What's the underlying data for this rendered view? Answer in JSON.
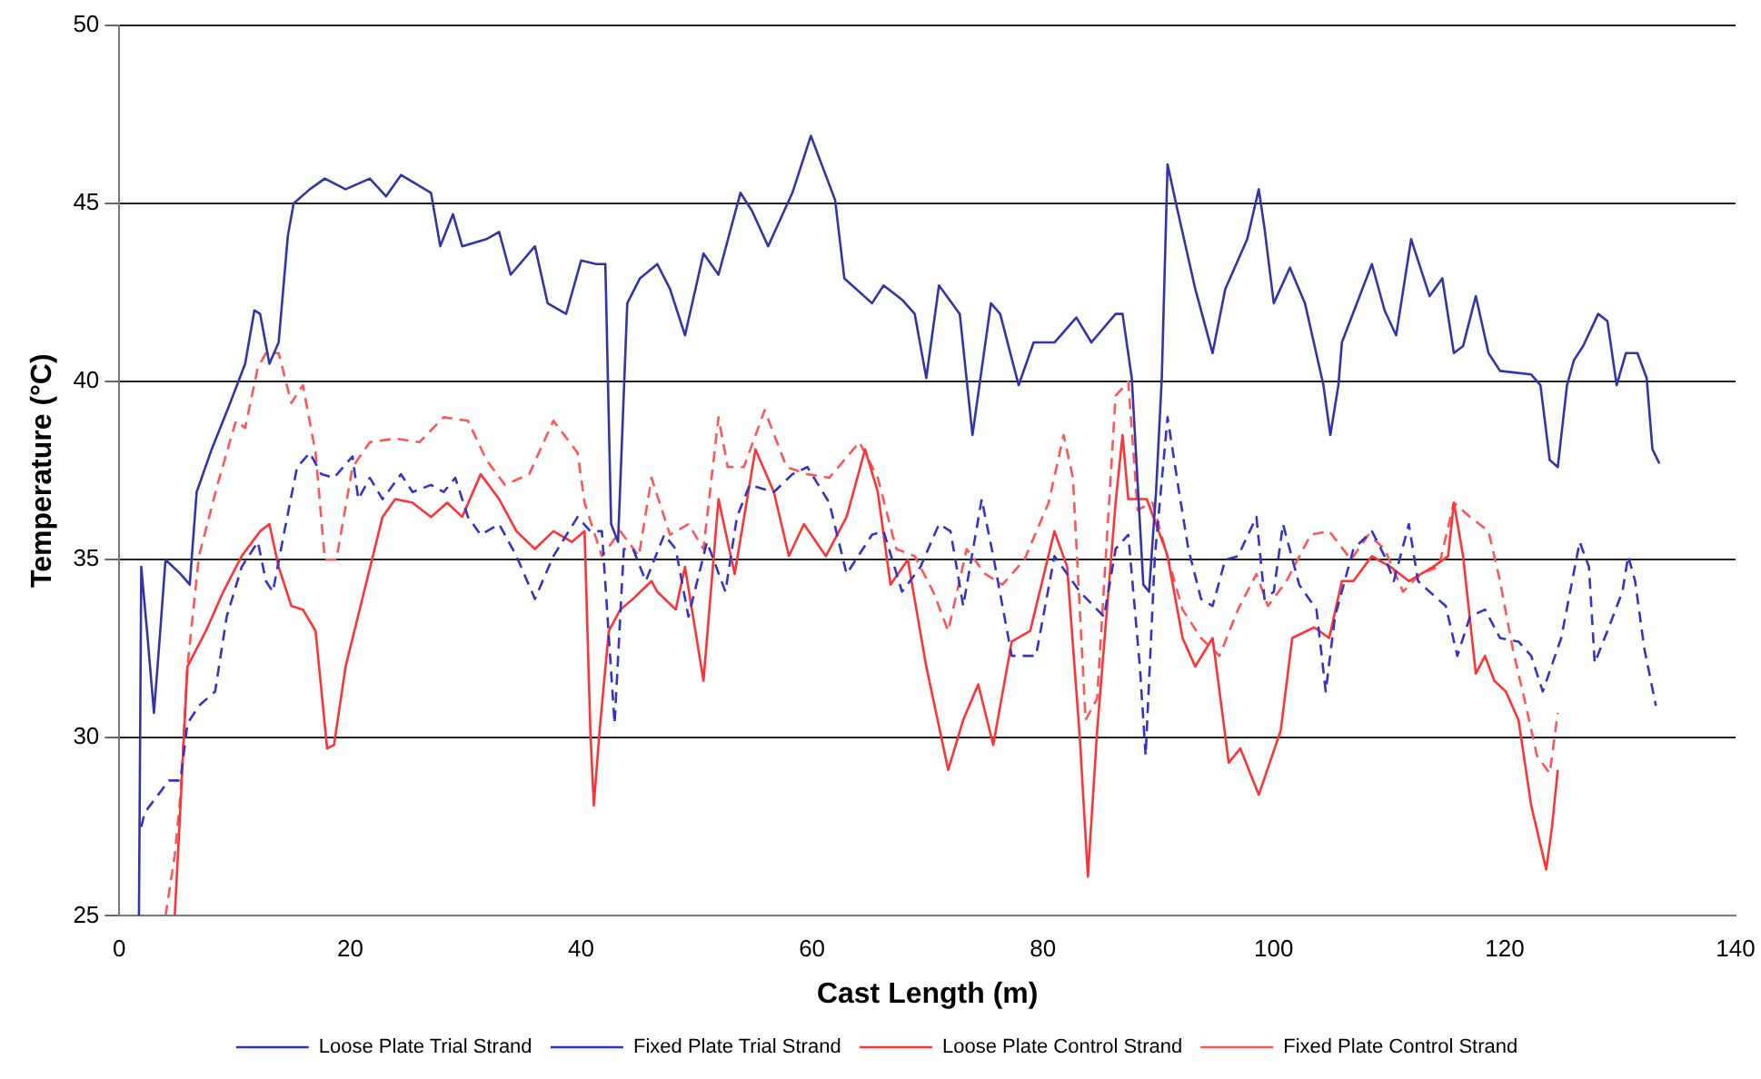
{
  "chart_data": {
    "type": "line",
    "xlabel": "Cast Length (m)",
    "ylabel": "Temperature (°C)",
    "xlim": [
      0,
      140
    ],
    "xticks": [
      0,
      20,
      40,
      60,
      80,
      100,
      120,
      140
    ],
    "ylim": [
      25,
      50
    ],
    "yticks": [
      25,
      30,
      35,
      40,
      45,
      50
    ],
    "grid": "y",
    "legend": "bottom",
    "marker": "none",
    "series": [
      {
        "name": "Loose Plate Trial Strand",
        "color": "#3333aa",
        "line_style": "solid",
        "x": [
          1.7,
          1.9,
          2.4,
          3.0,
          3.5,
          4.0,
          5.3,
          6.1,
          6.7,
          8.0,
          9.6,
          10.9,
          11.7,
          12.2,
          13.0,
          13.8,
          14.6,
          15.1,
          16.5,
          17.8,
          19.6,
          21.7,
          23.1,
          24.4,
          27.0,
          27.8,
          28.9,
          29.7,
          31.8,
          32.9,
          33.9,
          36.0,
          37.1,
          38.7,
          40.0,
          41.3,
          42.1,
          42.6,
          43.2,
          44.0,
          45.1,
          46.6,
          47.7,
          49.0,
          50.6,
          51.9,
          53.8,
          54.8,
          56.2,
          58.3,
          59.9,
          62.0,
          62.8,
          65.2,
          66.2,
          67.8,
          68.9,
          69.9,
          71.0,
          72.8,
          73.9,
          75.5,
          76.3,
          77.9,
          79.2,
          81.0,
          82.9,
          84.2,
          86.3,
          86.9,
          87.7,
          88.7,
          89.2,
          89.8,
          90.3,
          90.8,
          91.6,
          93.2,
          94.7,
          95.8,
          97.7,
          98.7,
          99.2,
          100.0,
          101.4,
          102.7,
          104.3,
          104.9,
          105.6,
          105.9,
          108.5,
          109.6,
          110.6,
          111.9,
          113.5,
          114.6,
          115.6,
          116.4,
          117.5,
          118.6,
          119.6,
          122.3,
          123.1,
          123.9,
          124.6,
          125.4,
          126.0,
          126.8,
          128.1,
          128.9,
          129.7,
          130.5,
          131.5,
          132.3,
          132.8,
          133.4
        ],
        "values": [
          25,
          34.8,
          33.0,
          30.7,
          32.8,
          35.0,
          34.6,
          34.3,
          36.9,
          38.1,
          39.4,
          40.5,
          42.0,
          41.9,
          40.5,
          41.1,
          44.1,
          45.0,
          45.4,
          45.7,
          45.4,
          45.7,
          45.2,
          45.8,
          45.3,
          43.8,
          44.7,
          43.8,
          44.0,
          44.2,
          43.0,
          43.8,
          42.2,
          41.9,
          43.4,
          43.3,
          43.3,
          36.0,
          35.5,
          42.2,
          42.9,
          43.3,
          42.6,
          41.3,
          43.6,
          43.0,
          45.3,
          44.8,
          43.8,
          45.3,
          46.9,
          45.1,
          42.9,
          42.2,
          42.7,
          42.3,
          41.9,
          40.1,
          42.7,
          41.9,
          38.5,
          42.2,
          41.9,
          39.9,
          41.1,
          41.1,
          41.8,
          41.1,
          41.9,
          41.9,
          40.1,
          34.3,
          34.1,
          36.9,
          40.1,
          46.1,
          44.9,
          42.6,
          40.8,
          42.6,
          44.0,
          45.4,
          44.3,
          42.2,
          43.2,
          42.2,
          39.9,
          38.5,
          39.9,
          41.1,
          43.3,
          42.0,
          41.3,
          44.0,
          42.4,
          42.9,
          40.8,
          41.0,
          42.4,
          40.8,
          40.3,
          40.2,
          39.9,
          37.8,
          37.6,
          39.9,
          40.6,
          41.0,
          41.9,
          41.7,
          39.9,
          40.8,
          40.8,
          40.1,
          38.1,
          37.7
        ]
      },
      {
        "name": "Fixed Plate Trial Strand",
        "color": "#3333cc",
        "line_style": "dashed",
        "x": [
          1.9,
          2.2,
          4.3,
          5.3,
          5.9,
          6.9,
          8.3,
          9.3,
          10.6,
          12.0,
          12.7,
          13.3,
          14.3,
          15.4,
          16.5,
          17.5,
          18.6,
          20.2,
          20.7,
          21.7,
          22.8,
          24.4,
          25.4,
          27.0,
          28.1,
          29.1,
          30.2,
          31.3,
          32.9,
          34.4,
          36.0,
          37.6,
          39.7,
          40.8,
          41.8,
          42.9,
          43.7,
          44.5,
          45.6,
          47.2,
          48.2,
          49.3,
          50.9,
          52.5,
          53.5,
          54.6,
          56.7,
          58.3,
          59.6,
          61.5,
          63.0,
          65.2,
          66.2,
          67.8,
          69.4,
          71.0,
          72.0,
          73.1,
          74.7,
          75.7,
          77.3,
          79.4,
          81.0,
          83.2,
          85.3,
          86.3,
          87.4,
          88.4,
          88.9,
          89.7,
          90.8,
          91.8,
          92.6,
          93.7,
          94.7,
          95.8,
          96.9,
          98.5,
          99.2,
          100.0,
          100.8,
          102.2,
          103.7,
          104.5,
          105.3,
          106.9,
          108.5,
          109.6,
          110.4,
          111.7,
          112.5,
          113.5,
          114.9,
          115.9,
          117.0,
          118.3,
          119.6,
          121.2,
          122.3,
          123.3,
          124.9,
          126.5,
          127.3,
          127.8,
          128.9,
          130.2,
          130.7,
          131.3,
          132.1,
          133.1
        ],
        "values": [
          27.5,
          27.9,
          28.8,
          28.8,
          30.4,
          30.9,
          31.3,
          33.4,
          34.8,
          35.5,
          34.4,
          34.1,
          35.8,
          37.6,
          38.0,
          37.4,
          37.3,
          37.9,
          36.7,
          37.3,
          36.7,
          37.4,
          36.9,
          37.1,
          36.9,
          37.3,
          36.2,
          35.7,
          36.0,
          35.1,
          33.9,
          35.1,
          36.2,
          35.8,
          35.8,
          30.4,
          35.3,
          35.3,
          34.4,
          35.7,
          35.3,
          33.4,
          35.5,
          34.1,
          36.2,
          37.1,
          36.9,
          37.4,
          37.6,
          36.6,
          34.6,
          35.7,
          35.8,
          34.1,
          34.8,
          36.0,
          35.8,
          33.7,
          36.7,
          35.1,
          32.3,
          32.3,
          35.1,
          34.1,
          33.4,
          35.3,
          35.7,
          32.0,
          29.5,
          35.1,
          39.0,
          36.9,
          35.3,
          33.9,
          33.7,
          35.0,
          35.1,
          36.2,
          33.9,
          34.1,
          36.0,
          34.3,
          33.6,
          31.3,
          33.4,
          35.3,
          35.8,
          35.1,
          34.4,
          36.0,
          34.4,
          34.1,
          33.7,
          32.3,
          33.4,
          33.6,
          32.8,
          32.7,
          32.3,
          31.3,
          32.8,
          35.5,
          34.8,
          32.1,
          33.0,
          34.1,
          35.1,
          34.4,
          32.5,
          30.9
        ]
      },
      {
        "name": "Loose Plate Control Strand",
        "color": "#ff3333",
        "line_style": "solid",
        "x": [
          4.8,
          5.3,
          5.9,
          7.5,
          9.0,
          10.6,
          12.2,
          13.0,
          13.8,
          14.9,
          15.9,
          17.0,
          18.0,
          18.6,
          19.6,
          21.2,
          22.8,
          23.9,
          25.4,
          27.0,
          28.4,
          29.7,
          31.3,
          32.9,
          34.4,
          36.0,
          37.6,
          39.2,
          40.3,
          40.8,
          41.1,
          41.6,
          42.4,
          43.4,
          44.5,
          46.1,
          46.6,
          48.2,
          49.0,
          50.6,
          51.9,
          53.3,
          55.1,
          56.7,
          58.0,
          59.3,
          61.2,
          63.0,
          64.6,
          65.7,
          66.8,
          68.3,
          69.9,
          71.8,
          73.1,
          74.4,
          75.7,
          77.3,
          78.9,
          81.0,
          82.1,
          83.2,
          83.9,
          84.7,
          86.3,
          86.9,
          87.4,
          89.0,
          90.6,
          90.8,
          92.1,
          93.2,
          94.7,
          96.1,
          97.1,
          98.7,
          100.6,
          101.6,
          103.5,
          104.8,
          105.9,
          106.9,
          108.5,
          110.1,
          111.7,
          113.8,
          115.1,
          115.6,
          116.4,
          117.5,
          118.3,
          119.1,
          120.1,
          121.2,
          122.3,
          123.6,
          124.1,
          124.6
        ],
        "values": [
          25,
          28.1,
          32.0,
          33.0,
          34.1,
          35.1,
          35.8,
          36.0,
          34.8,
          33.7,
          33.6,
          33.0,
          29.7,
          29.8,
          32.0,
          34.1,
          36.2,
          36.7,
          36.6,
          36.2,
          36.6,
          36.2,
          37.4,
          36.7,
          35.8,
          35.3,
          35.8,
          35.5,
          35.8,
          30.2,
          28.1,
          30.2,
          33.0,
          33.6,
          33.9,
          34.4,
          34.1,
          33.6,
          34.8,
          31.6,
          36.7,
          34.6,
          38.1,
          36.9,
          35.1,
          36.0,
          35.1,
          36.2,
          38.1,
          36.9,
          34.3,
          35.0,
          32.0,
          29.1,
          30.5,
          31.5,
          29.8,
          32.7,
          33.0,
          35.8,
          34.8,
          30.0,
          26.1,
          30.2,
          36.6,
          38.5,
          36.7,
          36.7,
          35.3,
          35.1,
          32.8,
          32.0,
          32.8,
          29.3,
          29.7,
          28.4,
          30.2,
          32.8,
          33.1,
          32.8,
          34.4,
          34.4,
          35.1,
          34.8,
          34.4,
          34.8,
          35.1,
          36.6,
          35.1,
          31.8,
          32.3,
          31.6,
          31.3,
          30.5,
          28.1,
          26.3,
          27.5,
          29.1
        ]
      },
      {
        "name": "Fixed Plate Control Strand",
        "color": "#ff5555",
        "line_style": "dashed",
        "x": [
          4.0,
          4.8,
          5.3,
          5.9,
          6.9,
          8.5,
          10.1,
          10.9,
          12.0,
          12.7,
          13.8,
          14.9,
          15.9,
          17.0,
          17.8,
          18.8,
          20.2,
          21.7,
          23.9,
          26.0,
          28.1,
          30.2,
          31.8,
          33.4,
          35.5,
          37.6,
          39.7,
          40.3,
          41.8,
          43.4,
          45.0,
          46.1,
          47.7,
          49.3,
          50.6,
          51.9,
          52.7,
          54.1,
          55.9,
          57.8,
          59.6,
          61.5,
          64.1,
          65.7,
          67.3,
          68.9,
          70.5,
          71.8,
          73.4,
          75.0,
          76.5,
          78.4,
          80.5,
          81.8,
          82.6,
          83.7,
          84.7,
          86.3,
          87.4,
          88.2,
          89.5,
          90.6,
          92.1,
          93.7,
          95.3,
          96.9,
          98.5,
          99.5,
          101.1,
          103.2,
          104.8,
          106.7,
          108.2,
          109.6,
          111.2,
          112.7,
          114.3,
          115.6,
          117.0,
          118.6,
          119.6,
          120.7,
          121.7,
          122.8,
          123.9,
          124.6
        ],
        "values": [
          25,
          26.7,
          28.4,
          32.0,
          35.1,
          37.1,
          38.9,
          38.7,
          40.4,
          40.8,
          40.8,
          39.4,
          39.9,
          38.0,
          35.0,
          35.0,
          37.6,
          38.3,
          38.4,
          38.3,
          39.0,
          38.9,
          37.8,
          37.1,
          37.4,
          38.9,
          38.0,
          36.6,
          35.1,
          35.8,
          35.1,
          37.3,
          35.7,
          36.0,
          35.3,
          39.0,
          37.6,
          37.6,
          39.2,
          37.6,
          37.4,
          37.3,
          38.3,
          37.3,
          35.3,
          35.1,
          34.1,
          33.0,
          35.3,
          34.6,
          34.3,
          35.0,
          36.6,
          38.5,
          37.3,
          30.5,
          31.1,
          39.6,
          40.0,
          36.4,
          36.6,
          35.3,
          33.6,
          32.8,
          32.3,
          33.6,
          34.6,
          33.7,
          34.4,
          35.7,
          35.8,
          35.0,
          35.7,
          35.3,
          34.1,
          34.6,
          34.8,
          36.6,
          36.2,
          35.8,
          34.4,
          32.5,
          31.1,
          29.5,
          29.0,
          30.7
        ]
      }
    ]
  }
}
